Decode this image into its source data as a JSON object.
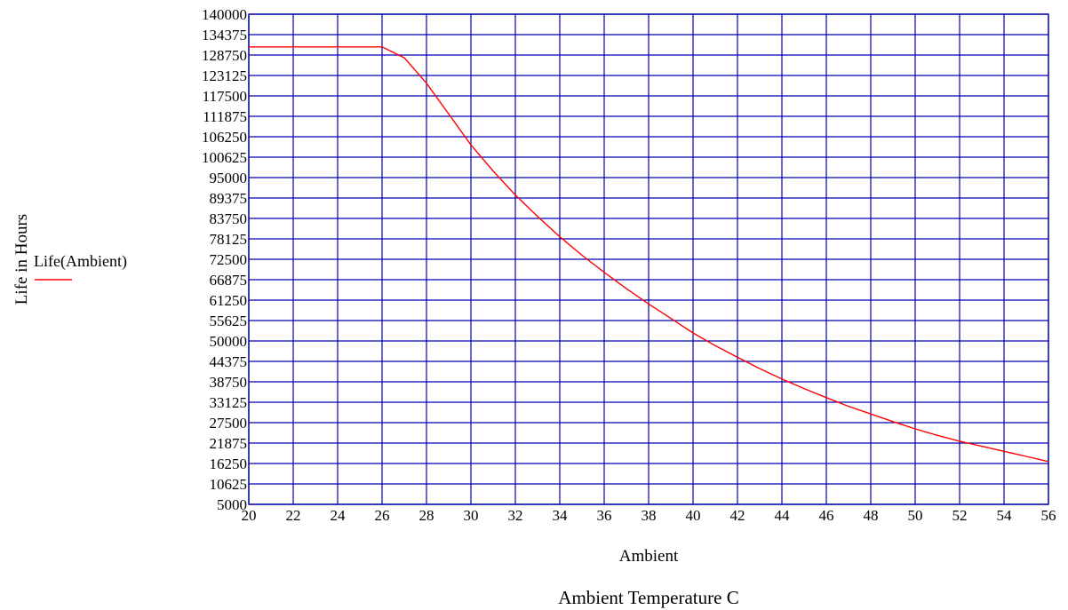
{
  "chart_data": {
    "type": "line",
    "title": "",
    "xlabel": "Ambient",
    "ylabel": "Life in Hours",
    "caption": "Ambient Temperature C",
    "xlim": [
      20,
      56
    ],
    "ylim": [
      5000,
      140000
    ],
    "x_ticks": [
      "20",
      "22",
      "24",
      "26",
      "28",
      "30",
      "32",
      "34",
      "36",
      "38",
      "40",
      "42",
      "44",
      "46",
      "48",
      "50",
      "52",
      "54",
      "56"
    ],
    "y_ticks": [
      "140000",
      "134375",
      "128750",
      "123125",
      "117500",
      "111875",
      "106250",
      "100625",
      "95000",
      "89375",
      "83750",
      "78125",
      "72500",
      "66875",
      "61250",
      "55625",
      "50000",
      "44375",
      "38750",
      "33125",
      "27500",
      "21875",
      "16250",
      "10625",
      "5000"
    ],
    "grid": true,
    "grid_color": "#0000b0",
    "legend_position": "left",
    "series": [
      {
        "name": "Life(Ambient)",
        "color": "#ff0000",
        "x": [
          20,
          22,
          24,
          26,
          27,
          28,
          29,
          30,
          31,
          32,
          33,
          34,
          35,
          36,
          37,
          38,
          39,
          40,
          41,
          42,
          43,
          44,
          45,
          46,
          47,
          48,
          49,
          50,
          51,
          52,
          53,
          54,
          55,
          56
        ],
        "y": [
          131000,
          131000,
          131000,
          131000,
          128000,
          121000,
          112500,
          104000,
          96800,
          90200,
          84300,
          78700,
          73600,
          68900,
          64400,
          60200,
          56200,
          52200,
          48700,
          45500,
          42400,
          39500,
          36900,
          34400,
          32000,
          29900,
          27800,
          25800,
          24000,
          22400,
          21000,
          19600,
          18200,
          16800
        ]
      }
    ]
  }
}
